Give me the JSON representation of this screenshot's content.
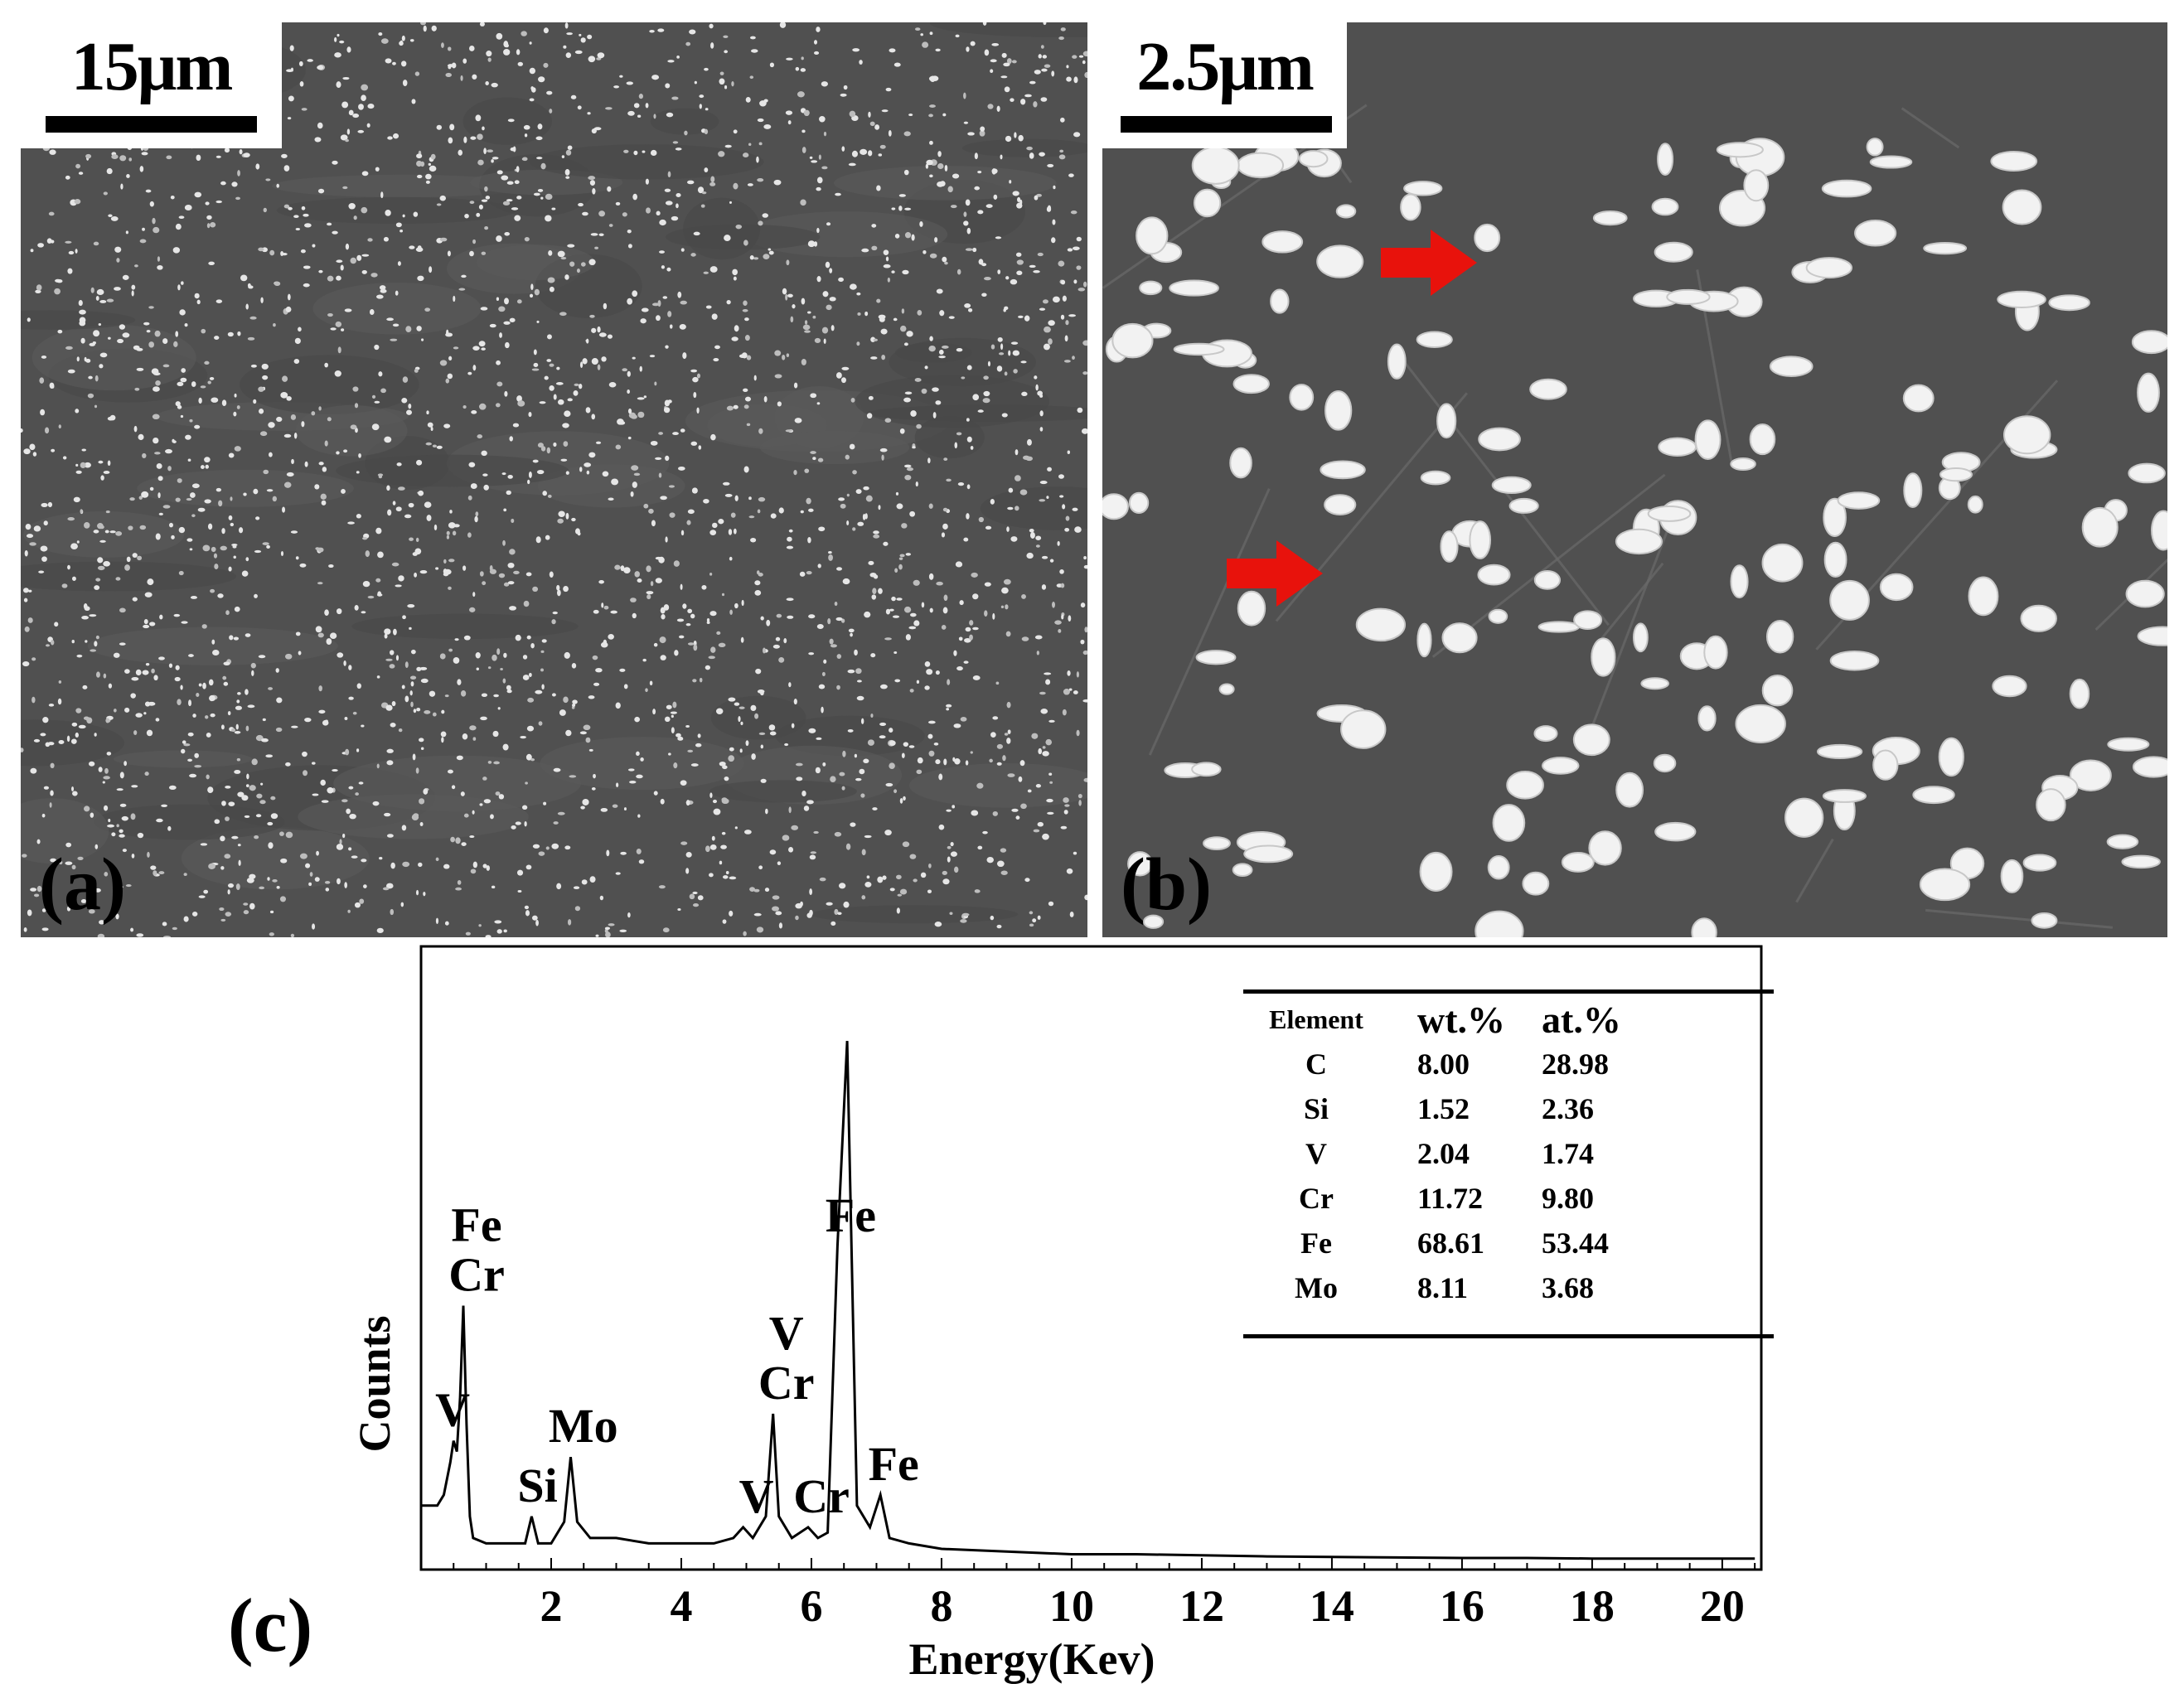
{
  "panel_a": {
    "scale_label": "15μm",
    "panel_label": "(a)"
  },
  "panel_b": {
    "scale_label": "2.5μm",
    "panel_label": "(b)",
    "arrow_color": "#e8120c"
  },
  "panel_c": {
    "panel_label": "(c)",
    "table": {
      "headers": [
        "Element",
        "wt.%",
        "at.%"
      ],
      "rows": [
        [
          "C",
          "8.00",
          "28.98"
        ],
        [
          "Si",
          "1.52",
          "2.36"
        ],
        [
          "V",
          "2.04",
          "1.74"
        ],
        [
          "Cr",
          "11.72",
          "9.80"
        ],
        [
          "Fe",
          "68.61",
          "53.44"
        ],
        [
          "Mo",
          "8.11",
          "3.68"
        ]
      ]
    }
  },
  "chart_data": {
    "type": "line",
    "title": "",
    "xlabel": "Energy(Kev)",
    "ylabel": "Counts",
    "xlim": [
      0,
      20.6
    ],
    "ylim": [
      0,
      100
    ],
    "x_ticks": [
      2,
      4,
      6,
      8,
      10,
      12,
      14,
      16,
      18,
      20
    ],
    "y_ticks": [],
    "grid": false,
    "series": [
      {
        "name": "",
        "x": [
          0.0,
          0.25,
          0.35,
          0.45,
          0.5,
          0.55,
          0.6,
          0.65,
          0.7,
          0.75,
          0.8,
          1.0,
          1.3,
          1.6,
          1.7,
          1.8,
          2.0,
          2.2,
          2.3,
          2.4,
          2.6,
          3.0,
          3.5,
          4.0,
          4.5,
          4.8,
          4.95,
          5.1,
          5.3,
          5.41,
          5.5,
          5.7,
          5.95,
          6.1,
          6.25,
          6.4,
          6.55,
          6.7,
          6.9,
          7.06,
          7.2,
          7.5,
          8.0,
          9.0,
          10.0,
          11.0,
          12.0,
          13.0,
          14.0,
          15.0,
          16.0,
          17.0,
          18.0,
          19.0,
          20.0,
          20.5
        ],
        "y": [
          10,
          10,
          12,
          18,
          22,
          20,
          30,
          47,
          25,
          8,
          4,
          3,
          3,
          3,
          8,
          3,
          3,
          7,
          19,
          7,
          4,
          4,
          3,
          3,
          3,
          4,
          6,
          4,
          8,
          27,
          8,
          4,
          6,
          4,
          5,
          58,
          96,
          10,
          6,
          12,
          4,
          3,
          2,
          1.5,
          1,
          1,
          0.8,
          0.6,
          0.5,
          0.4,
          0.3,
          0.3,
          0.2,
          0.2,
          0.2,
          0.2
        ]
      }
    ],
    "peak_labels": [
      {
        "text": "V",
        "x": 0.51
      },
      {
        "text": "Fe",
        "x": 0.65
      },
      {
        "text": "Cr",
        "x": 0.65
      },
      {
        "text": "Si",
        "x": 1.74
      },
      {
        "text": "Mo",
        "x": 2.29
      },
      {
        "text": "V",
        "x": 4.95
      },
      {
        "text": "V",
        "x": 5.41
      },
      {
        "text": "Cr",
        "x": 5.41
      },
      {
        "text": "Cr",
        "x": 5.95
      },
      {
        "text": "Fe",
        "x": 6.4
      },
      {
        "text": "Fe",
        "x": 7.06
      }
    ]
  }
}
